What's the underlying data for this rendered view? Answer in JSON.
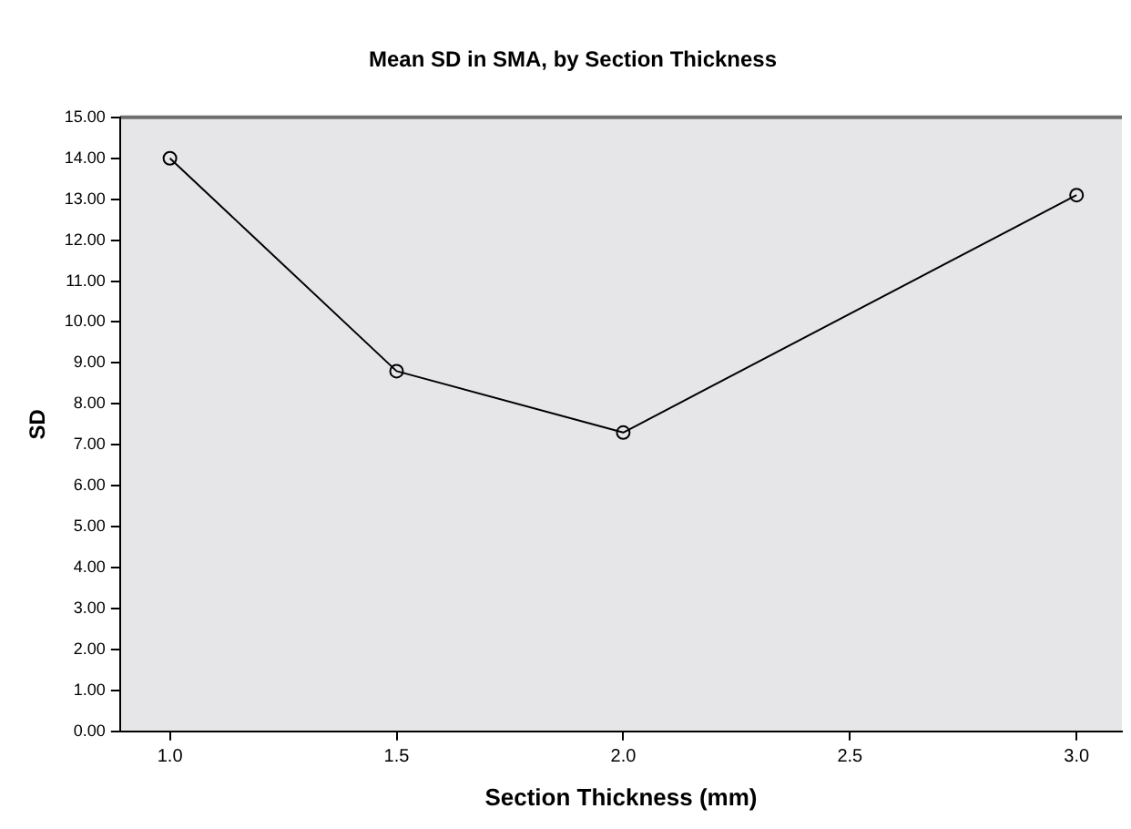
{
  "chart_data": {
    "type": "line",
    "title": "Mean SD in SMA, by Section Thickness",
    "xlabel": "Section Thickness (mm)",
    "ylabel": "SD",
    "x": [
      1.0,
      1.5,
      2.0,
      3.0
    ],
    "series": [
      {
        "color": "#000000",
        "values": [
          14.0,
          8.8,
          7.3,
          13.1
        ]
      }
    ],
    "xlim": [
      0.89,
      3.1
    ],
    "xticks": [
      {
        "value": 1,
        "label": "1.0"
      },
      {
        "value": 1.5,
        "label": "1.5"
      },
      {
        "value": 2,
        "label": "2.0"
      },
      {
        "value": 2.5,
        "label": "2.5"
      },
      {
        "value": 3,
        "label": "3.0"
      }
    ],
    "ylim": [
      0,
      15
    ],
    "yticks": [
      {
        "value": 0,
        "label": "0.00"
      },
      {
        "value": 1,
        "label": "1.00"
      },
      {
        "value": 2,
        "label": "2.00"
      },
      {
        "value": 3,
        "label": "3.00"
      },
      {
        "value": 4,
        "label": "4.00"
      },
      {
        "value": 5,
        "label": "5.00"
      },
      {
        "value": 6,
        "label": "6.00"
      },
      {
        "value": 7,
        "label": "7.00"
      },
      {
        "value": 8,
        "label": "8.00"
      },
      {
        "value": 9,
        "label": "9.00"
      },
      {
        "value": 10,
        "label": "10.00"
      },
      {
        "value": 11,
        "label": "11.00"
      },
      {
        "value": 12,
        "label": "12.00"
      },
      {
        "value": 13,
        "label": "13.00"
      },
      {
        "value": 14,
        "label": "14.00"
      },
      {
        "value": 15,
        "label": "15.00"
      }
    ],
    "grid": false,
    "legend": false,
    "marker": "circle",
    "line_style": "solid"
  }
}
